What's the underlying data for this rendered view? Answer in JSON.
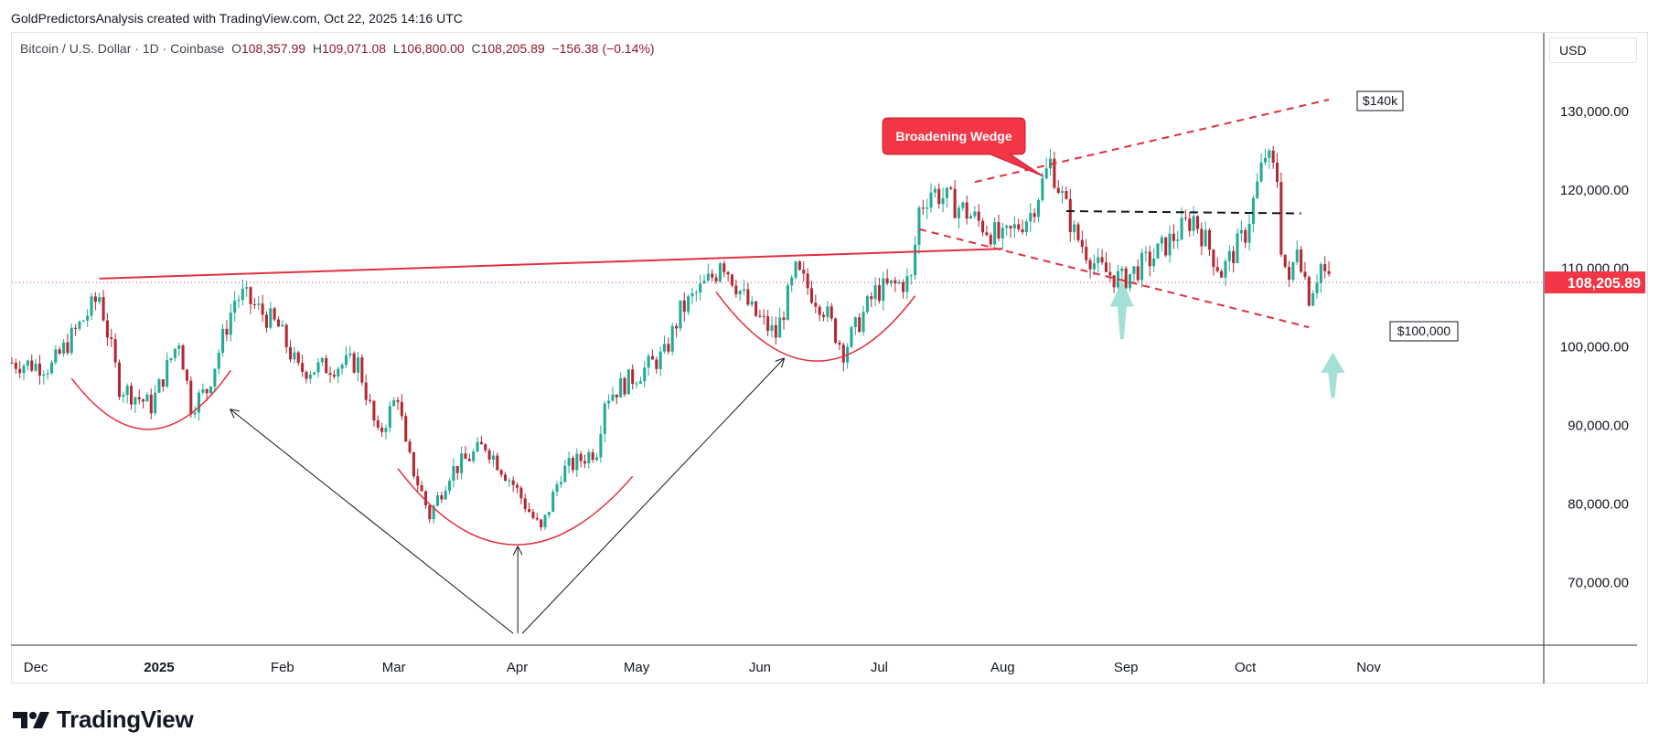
{
  "header": {
    "attribution": "GoldPredictorsAnalysis created with TradingView.com, Oct 22, 2025 14:16 UTC"
  },
  "legend": {
    "symbol": "Bitcoin / U.S. Dollar · 1D · Coinbase",
    "open_label": "O",
    "open": "108,357.99",
    "high_label": "H",
    "high": "109,071.08",
    "low_label": "L",
    "low": "106,800.00",
    "close_label": "C",
    "close": "108,205.89",
    "change": "−156.38 (−0.14%)"
  },
  "price_scale": {
    "currency": "USD"
  },
  "branding": {
    "name": "TradingView"
  },
  "colors": {
    "up": "#22ab94",
    "down": "#b22833",
    "pattern_red": "#e03040",
    "label_red": "#f23645",
    "price_tag": "#f23645",
    "arrow_teal": "#8fd8cc",
    "grid": "#f0f3fa",
    "axis_text": "#131722"
  },
  "chart_data": {
    "type": "candlestick",
    "title": "Bitcoin / U.S. Dollar · 1D · Coinbase",
    "ylim": [
      62000,
      140000
    ],
    "y_ticks": [
      70000,
      80000,
      90000,
      100000,
      110000,
      120000,
      130000
    ],
    "y_tick_labels": [
      "70,000.00",
      "80,000.00",
      "90,000.00",
      "100,000.00",
      "110,000.00",
      "120,000.00",
      "130,000.00"
    ],
    "x_ticks": [
      {
        "date": "2024-12-01",
        "label": "Dec"
      },
      {
        "date": "2025-01-01",
        "label": "2025"
      },
      {
        "date": "2025-02-01",
        "label": "Feb"
      },
      {
        "date": "2025-03-01",
        "label": "Mar"
      },
      {
        "date": "2025-04-01",
        "label": "Apr"
      },
      {
        "date": "2025-05-01",
        "label": "May"
      },
      {
        "date": "2025-06-01",
        "label": "Jun"
      },
      {
        "date": "2025-07-01",
        "label": "Jul"
      },
      {
        "date": "2025-08-01",
        "label": "Aug"
      },
      {
        "date": "2025-09-01",
        "label": "Sep"
      },
      {
        "date": "2025-10-01",
        "label": "Oct"
      },
      {
        "date": "2025-11-01",
        "label": "Nov"
      }
    ],
    "x_range": [
      "2024-11-25",
      "2025-12-15"
    ],
    "last_price": 108205.89,
    "last_price_label": "108,205.89",
    "close_path": [
      [
        "2024-11-25",
        98000
      ],
      [
        "2024-12-05",
        97500
      ],
      [
        "2024-12-17",
        106500
      ],
      [
        "2024-12-22",
        95000
      ],
      [
        "2024-12-30",
        92500
      ],
      [
        "2025-01-06",
        101000
      ],
      [
        "2025-01-09",
        92500
      ],
      [
        "2025-01-13",
        94500
      ],
      [
        "2025-01-20",
        106000
      ],
      [
        "2025-01-22",
        106500
      ],
      [
        "2025-01-31",
        102500
      ],
      [
        "2025-02-05",
        97000
      ],
      [
        "2025-02-20",
        98000
      ],
      [
        "2025-02-25",
        88500
      ],
      [
        "2025-03-02",
        94000
      ],
      [
        "2025-03-04",
        87000
      ],
      [
        "2025-03-10",
        78500
      ],
      [
        "2025-03-15",
        84000
      ],
      [
        "2025-03-24",
        87500
      ],
      [
        "2025-03-31",
        82500
      ],
      [
        "2025-04-07",
        76500
      ],
      [
        "2025-04-12",
        84000
      ],
      [
        "2025-04-21",
        87000
      ],
      [
        "2025-04-23",
        93500
      ],
      [
        "2025-05-08",
        99000
      ],
      [
        "2025-05-12",
        104500
      ],
      [
        "2025-05-21",
        109500
      ],
      [
        "2025-05-22",
        111500
      ],
      [
        "2025-05-30",
        104500
      ],
      [
        "2025-06-05",
        101500
      ],
      [
        "2025-06-10",
        109500
      ],
      [
        "2025-06-17",
        105000
      ],
      [
        "2025-06-22",
        99500
      ],
      [
        "2025-06-30",
        107000
      ],
      [
        "2025-07-09",
        108500
      ],
      [
        "2025-07-11",
        117500
      ],
      [
        "2025-07-14",
        120000
      ],
      [
        "2025-07-22",
        117500
      ],
      [
        "2025-08-01",
        113500
      ],
      [
        "2025-08-08",
        117000
      ],
      [
        "2025-08-13",
        123500
      ],
      [
        "2025-08-19",
        114500
      ],
      [
        "2025-08-25",
        110000
      ],
      [
        "2025-08-31",
        108500
      ],
      [
        "2025-09-08",
        111500
      ],
      [
        "2025-09-18",
        116500
      ],
      [
        "2025-09-25",
        109500
      ],
      [
        "2025-10-01",
        114500
      ],
      [
        "2025-10-06",
        124500
      ],
      [
        "2025-10-09",
        121500
      ],
      [
        "2025-10-10",
        113000
      ],
      [
        "2025-10-12",
        107500
      ],
      [
        "2025-10-14",
        113500
      ],
      [
        "2025-10-17",
        106500
      ],
      [
        "2025-10-20",
        110500
      ],
      [
        "2025-10-22",
        108205.89
      ]
    ],
    "annotations": {
      "broadening_wedge_label": "Broadening Wedge",
      "target_high_label": "$140k",
      "target_low_label": "$100,000",
      "resistance_line": [
        [
          "2024-12-17",
          108700
        ],
        [
          "2025-08-01",
          112500
        ]
      ],
      "wedge_upper": [
        [
          "2025-07-25",
          121000
        ],
        [
          "2025-10-22",
          131500
        ]
      ],
      "wedge_lower": [
        [
          "2025-07-11",
          115000
        ],
        [
          "2025-10-17",
          102500
        ]
      ],
      "dashed_neckline": [
        [
          "2025-08-17",
          117300
        ],
        [
          "2025-10-15",
          117000
        ]
      ],
      "cup_arcs": [
        {
          "start": [
            "2024-12-10",
            96000
          ],
          "bottom": [
            "2024-12-30",
            89500
          ],
          "end": [
            "2025-01-19",
            97000
          ]
        },
        {
          "start": [
            "2025-03-02",
            84500
          ],
          "bottom": [
            "2025-03-31",
            74800
          ],
          "end": [
            "2025-04-30",
            83500
          ]
        },
        {
          "start": [
            "2025-05-21",
            107000
          ],
          "bottom": [
            "2025-06-15",
            98200
          ],
          "end": [
            "2025-07-10",
            106500
          ]
        }
      ],
      "v_lines": [
        [
          [
            "2025-01-19",
            92000
          ],
          [
            "2025-03-31",
            63500
          ],
          [
            "2025-06-07",
            98500
          ]
        ]
      ],
      "up_arrow_black": {
        "date": "2025-03-31",
        "from": 63500,
        "to": 74500
      },
      "teal_arrows": [
        {
          "date": "2025-08-31",
          "tip": 108500,
          "base": 101000
        },
        {
          "date": "2025-10-23",
          "tip": 99300,
          "base": 93500
        }
      ]
    }
  }
}
